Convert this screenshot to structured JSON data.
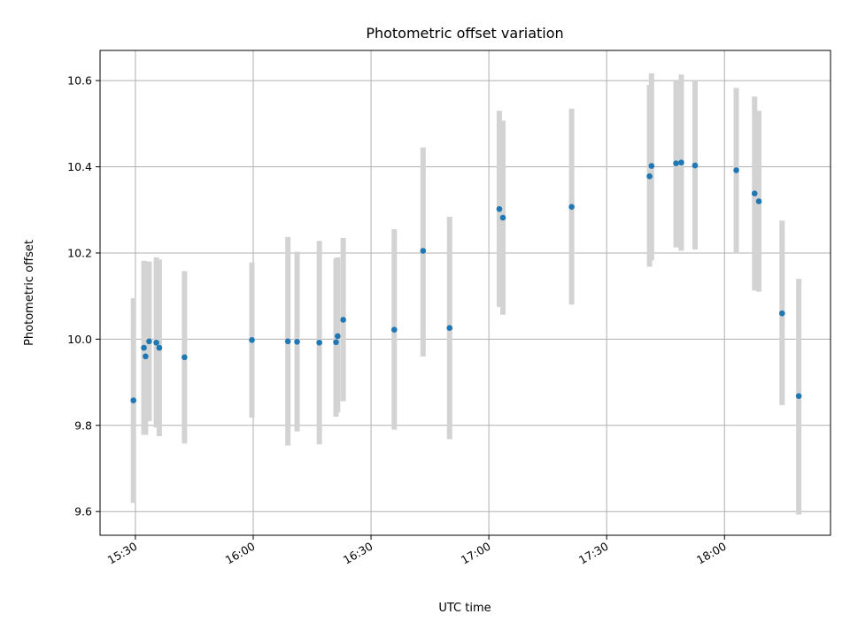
{
  "chart_data": {
    "type": "scatter",
    "title": "Photometric offset variation",
    "xlabel": "UTC time",
    "ylabel": "Photometric offset",
    "x_ticks": [
      "15:30",
      "16:00",
      "16:30",
      "17:00",
      "17:30",
      "18:00"
    ],
    "y_ticks": [
      "9.6",
      "9.8",
      "10.0",
      "10.2",
      "10.4",
      "10.6"
    ],
    "xlim": [
      "15:21",
      "18:27"
    ],
    "ylim": [
      9.545,
      10.67
    ],
    "grid": true,
    "colors": {
      "point": "#1f77b4",
      "errorbar": "#d3d3d3",
      "grid": "#b0b0b0"
    },
    "points": [
      {
        "x": "15:29:30",
        "y": 9.858,
        "low": 9.62,
        "high": 10.095
      },
      {
        "x": "15:32:10",
        "y": 9.98,
        "low": 9.778,
        "high": 10.182
      },
      {
        "x": "15:32:35",
        "y": 9.96,
        "low": 9.778,
        "high": 10.18
      },
      {
        "x": "15:33:30",
        "y": 9.995,
        "low": 9.81,
        "high": 10.18
      },
      {
        "x": "15:35:20",
        "y": 9.992,
        "low": 9.795,
        "high": 10.19
      },
      {
        "x": "15:36:05",
        "y": 9.98,
        "low": 9.775,
        "high": 10.185
      },
      {
        "x": "15:42:30",
        "y": 9.958,
        "low": 9.758,
        "high": 10.158
      },
      {
        "x": "15:59:40",
        "y": 9.998,
        "low": 9.818,
        "high": 10.178
      },
      {
        "x": "16:08:50",
        "y": 9.995,
        "low": 9.753,
        "high": 10.237
      },
      {
        "x": "16:11:10",
        "y": 9.994,
        "low": 9.786,
        "high": 10.203
      },
      {
        "x": "16:16:50",
        "y": 9.992,
        "low": 9.756,
        "high": 10.228
      },
      {
        "x": "16:21:05",
        "y": 9.993,
        "low": 9.82,
        "high": 10.187
      },
      {
        "x": "16:21:30",
        "y": 10.007,
        "low": 9.83,
        "high": 10.19
      },
      {
        "x": "16:22:55",
        "y": 10.045,
        "low": 9.856,
        "high": 10.235
      },
      {
        "x": "16:35:55",
        "y": 10.022,
        "low": 9.79,
        "high": 10.255
      },
      {
        "x": "16:43:15",
        "y": 10.205,
        "low": 9.96,
        "high": 10.445
      },
      {
        "x": "16:50:00",
        "y": 10.026,
        "low": 9.768,
        "high": 10.284
      },
      {
        "x": "17:02:40",
        "y": 10.302,
        "low": 10.075,
        "high": 10.53
      },
      {
        "x": "17:03:35",
        "y": 10.282,
        "low": 10.057,
        "high": 10.507
      },
      {
        "x": "17:21:05",
        "y": 10.307,
        "low": 10.08,
        "high": 10.535
      },
      {
        "x": "17:40:55",
        "y": 10.378,
        "low": 10.168,
        "high": 10.59
      },
      {
        "x": "17:41:25",
        "y": 10.402,
        "low": 10.183,
        "high": 10.617
      },
      {
        "x": "17:47:40",
        "y": 10.408,
        "low": 10.213,
        "high": 10.6
      },
      {
        "x": "17:49:00",
        "y": 10.41,
        "low": 10.205,
        "high": 10.614
      },
      {
        "x": "17:52:30",
        "y": 10.403,
        "low": 10.208,
        "high": 10.6
      },
      {
        "x": "18:03:00",
        "y": 10.392,
        "low": 10.198,
        "high": 10.583
      },
      {
        "x": "18:07:40",
        "y": 10.338,
        "low": 10.113,
        "high": 10.563
      },
      {
        "x": "18:08:45",
        "y": 10.32,
        "low": 10.11,
        "high": 10.53
      },
      {
        "x": "18:14:40",
        "y": 10.06,
        "low": 9.847,
        "high": 10.275
      },
      {
        "x": "18:18:55",
        "y": 9.868,
        "low": 9.593,
        "high": 10.14
      }
    ]
  }
}
